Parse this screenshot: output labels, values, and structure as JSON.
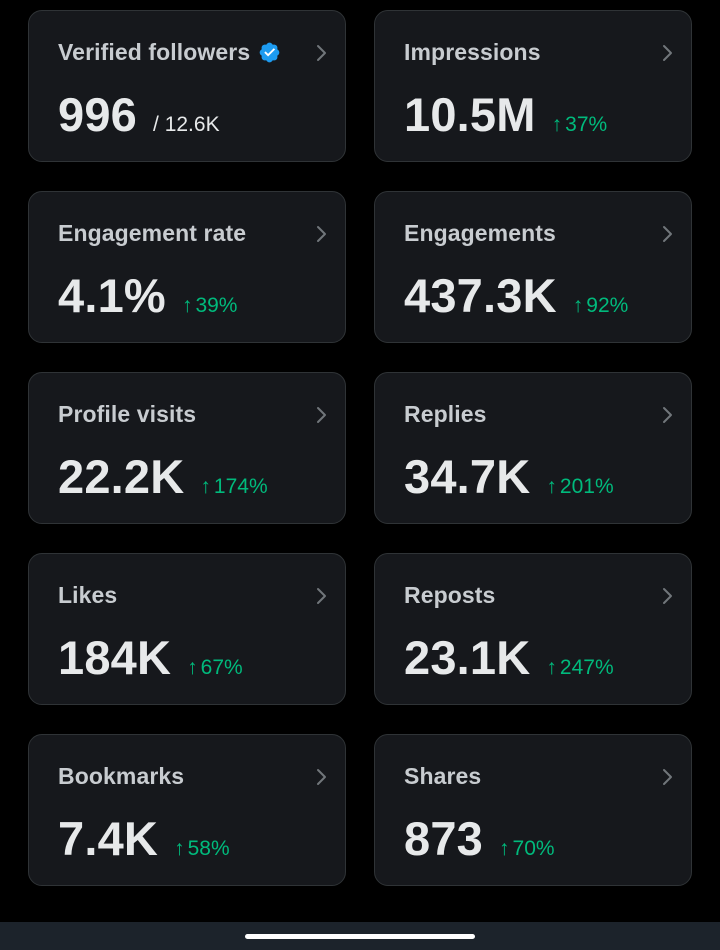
{
  "colors": {
    "background": "#000000",
    "card": "#16181c",
    "card_border": "#2f3336",
    "positive": "#00ba7c",
    "verified": "#1d9bf0"
  },
  "metrics": [
    {
      "title": "Verified followers",
      "value": "996",
      "sub": "/ 12.6K",
      "icon": "verified-badge-icon"
    },
    {
      "title": "Impressions",
      "value": "10.5M",
      "change": "37%",
      "direction": "up"
    },
    {
      "title": "Engagement rate",
      "value": "4.1%",
      "change": "39%",
      "direction": "up"
    },
    {
      "title": "Engagements",
      "value": "437.3K",
      "change": "92%",
      "direction": "up"
    },
    {
      "title": "Profile visits",
      "value": "22.2K",
      "change": "174%",
      "direction": "up"
    },
    {
      "title": "Replies",
      "value": "34.7K",
      "change": "201%",
      "direction": "up"
    },
    {
      "title": "Likes",
      "value": "184K",
      "change": "67%",
      "direction": "up"
    },
    {
      "title": "Reposts",
      "value": "23.1K",
      "change": "247%",
      "direction": "up"
    },
    {
      "title": "Bookmarks",
      "value": "7.4K",
      "change": "58%",
      "direction": "up"
    },
    {
      "title": "Shares",
      "value": "873",
      "change": "70%",
      "direction": "up"
    }
  ],
  "arrow_glyph": "↑"
}
